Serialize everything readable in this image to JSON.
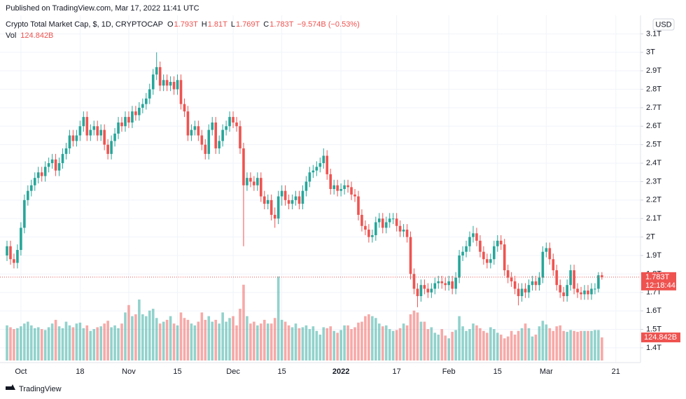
{
  "header": {
    "published": "Published on TradingView.com, Mar 17, 2022 11:41 UTC"
  },
  "footer": {
    "brand": "TradingView"
  },
  "chart_data": {
    "type": "candlestick",
    "legend": {
      "symbol": "Crypto Total Market Cap, $, 1D, CRYPTOCAP",
      "items": [
        {
          "label": "O",
          "value": "1.793T"
        },
        {
          "label": "H",
          "value": "1.81T"
        },
        {
          "label": "L",
          "value": "1.769T"
        },
        {
          "label": "C",
          "value": "1.783T"
        }
      ],
      "change": "−9.574B (−0.53%)",
      "volume_label": "Vol",
      "volume_value": "124.842B"
    },
    "currency": "USD",
    "countdown": "12:18:44",
    "price_tag": {
      "value": 1.783,
      "label": "1.783T"
    },
    "volume_tag": {
      "value": 124.842,
      "label": "124.842B"
    },
    "up_color": "#26a69a",
    "down_color": "#ef5350",
    "ylim": [
      1.32,
      3.2
    ],
    "yticks": [
      {
        "value": 3.1,
        "label": "3.1T"
      },
      {
        "value": 3.0,
        "label": "3T"
      },
      {
        "value": 2.9,
        "label": "2.9T"
      },
      {
        "value": 2.8,
        "label": "2.8T"
      },
      {
        "value": 2.7,
        "label": "2.7T"
      },
      {
        "value": 2.6,
        "label": "2.6T"
      },
      {
        "value": 2.5,
        "label": "2.5T"
      },
      {
        "value": 2.4,
        "label": "2.4T"
      },
      {
        "value": 2.3,
        "label": "2.3T"
      },
      {
        "value": 2.2,
        "label": "2.2T"
      },
      {
        "value": 2.1,
        "label": "2.1T"
      },
      {
        "value": 2.0,
        "label": "2T"
      },
      {
        "value": 1.9,
        "label": "1.9T"
      },
      {
        "value": 1.8,
        "label": "1.8T"
      },
      {
        "value": 1.7,
        "label": "1.7T"
      },
      {
        "value": 1.6,
        "label": "1.6T"
      },
      {
        "value": 1.5,
        "label": "1.5T"
      },
      {
        "value": 1.4,
        "label": "1.4T"
      }
    ],
    "grid": true,
    "categories": [
      null,
      null,
      null,
      null,
      "Oct",
      null,
      null,
      null,
      null,
      null,
      null,
      null,
      null,
      null,
      null,
      null,
      null,
      null,
      null,
      null,
      null,
      "18",
      null,
      null,
      null,
      null,
      null,
      null,
      null,
      null,
      null,
      null,
      null,
      null,
      null,
      "Nov",
      null,
      null,
      null,
      null,
      null,
      null,
      null,
      null,
      null,
      null,
      null,
      null,
      null,
      "15",
      null,
      null,
      null,
      null,
      null,
      null,
      null,
      null,
      null,
      null,
      null,
      null,
      null,
      null,
      null,
      "Dec",
      null,
      null,
      null,
      null,
      null,
      null,
      null,
      null,
      null,
      null,
      null,
      null,
      null,
      "15",
      null,
      null,
      null,
      null,
      null,
      null,
      null,
      null,
      null,
      null,
      null,
      null,
      null,
      null,
      null,
      null,
      "2022",
      null,
      null,
      null,
      null,
      null,
      null,
      null,
      null,
      null,
      null,
      null,
      null,
      null,
      null,
      null,
      "17",
      null,
      null,
      null,
      null,
      null,
      null,
      null,
      null,
      null,
      null,
      null,
      null,
      null,
      null,
      "Feb",
      null,
      null,
      null,
      null,
      null,
      null,
      null,
      null,
      null,
      null,
      null,
      null,
      null,
      "15",
      null,
      null,
      null,
      null,
      null,
      null,
      null,
      null,
      null,
      null,
      null,
      null,
      null,
      "Mar",
      null,
      null,
      null,
      null,
      null,
      null,
      null,
      null,
      null,
      null,
      null,
      null,
      null,
      null,
      null,
      null,
      null,
      null,
      null,
      "21"
    ],
    "candles": [
      [
        1.9,
        1.98,
        1.87,
        1.95
      ],
      [
        1.95,
        1.98,
        1.85,
        1.88
      ],
      [
        1.88,
        1.91,
        1.83,
        1.86
      ],
      [
        1.86,
        1.96,
        1.83,
        1.93
      ],
      [
        1.93,
        2.08,
        1.9,
        2.05
      ],
      [
        2.05,
        2.23,
        2.02,
        2.2
      ],
      [
        2.2,
        2.28,
        2.17,
        2.25
      ],
      [
        2.25,
        2.31,
        2.22,
        2.28
      ],
      [
        2.28,
        2.35,
        2.25,
        2.32
      ],
      [
        2.32,
        2.38,
        2.29,
        2.35
      ],
      [
        2.35,
        2.38,
        2.3,
        2.33
      ],
      [
        2.33,
        2.41,
        2.3,
        2.38
      ],
      [
        2.38,
        2.43,
        2.35,
        2.4
      ],
      [
        2.4,
        2.45,
        2.37,
        2.42
      ],
      [
        2.42,
        2.45,
        2.33,
        2.36
      ],
      [
        2.36,
        2.43,
        2.33,
        2.4
      ],
      [
        2.4,
        2.48,
        2.37,
        2.45
      ],
      [
        2.45,
        2.51,
        2.42,
        2.48
      ],
      [
        2.48,
        2.58,
        2.45,
        2.55
      ],
      [
        2.55,
        2.58,
        2.49,
        2.52
      ],
      [
        2.52,
        2.58,
        2.49,
        2.55
      ],
      [
        2.55,
        2.63,
        2.52,
        2.6
      ],
      [
        2.6,
        2.68,
        2.57,
        2.65
      ],
      [
        2.65,
        2.68,
        2.52,
        2.55
      ],
      [
        2.55,
        2.61,
        2.52,
        2.58
      ],
      [
        2.58,
        2.63,
        2.55,
        2.6
      ],
      [
        2.6,
        2.63,
        2.52,
        2.55
      ],
      [
        2.55,
        2.61,
        2.52,
        2.58
      ],
      [
        2.58,
        2.61,
        2.47,
        2.5
      ],
      [
        2.5,
        2.53,
        2.42,
        2.45
      ],
      [
        2.45,
        2.55,
        2.42,
        2.52
      ],
      [
        2.52,
        2.59,
        2.49,
        2.56
      ],
      [
        2.56,
        2.65,
        2.53,
        2.62
      ],
      [
        2.62,
        2.65,
        2.57,
        2.6
      ],
      [
        2.6,
        2.68,
        2.57,
        2.65
      ],
      [
        2.65,
        2.68,
        2.59,
        2.62
      ],
      [
        2.62,
        2.71,
        2.59,
        2.68
      ],
      [
        2.68,
        2.71,
        2.63,
        2.66
      ],
      [
        2.66,
        2.73,
        2.63,
        2.7
      ],
      [
        2.7,
        2.75,
        2.67,
        2.72
      ],
      [
        2.72,
        2.78,
        2.69,
        2.75
      ],
      [
        2.75,
        2.83,
        2.72,
        2.8
      ],
      [
        2.8,
        2.91,
        2.77,
        2.88
      ],
      [
        2.88,
        3.0,
        2.85,
        2.92
      ],
      [
        2.92,
        2.95,
        2.79,
        2.82
      ],
      [
        2.82,
        2.88,
        2.79,
        2.85
      ],
      [
        2.85,
        2.88,
        2.79,
        2.82
      ],
      [
        2.82,
        2.87,
        2.79,
        2.84
      ],
      [
        2.84,
        2.87,
        2.77,
        2.8
      ],
      [
        2.8,
        2.88,
        2.77,
        2.85
      ],
      [
        2.85,
        2.88,
        2.69,
        2.72
      ],
      [
        2.72,
        2.75,
        2.65,
        2.68
      ],
      [
        2.68,
        2.71,
        2.52,
        2.55
      ],
      [
        2.55,
        2.61,
        2.52,
        2.58
      ],
      [
        2.58,
        2.63,
        2.55,
        2.6
      ],
      [
        2.6,
        2.63,
        2.52,
        2.55
      ],
      [
        2.55,
        2.58,
        2.47,
        2.5
      ],
      [
        2.5,
        2.53,
        2.42,
        2.45
      ],
      [
        2.45,
        2.61,
        2.42,
        2.58
      ],
      [
        2.58,
        2.65,
        2.55,
        2.62
      ],
      [
        2.62,
        2.65,
        2.45,
        2.48
      ],
      [
        2.48,
        2.55,
        2.45,
        2.52
      ],
      [
        2.52,
        2.61,
        2.49,
        2.58
      ],
      [
        2.58,
        2.63,
        2.55,
        2.6
      ],
      [
        2.6,
        2.68,
        2.57,
        2.65
      ],
      [
        2.65,
        2.68,
        2.59,
        2.62
      ],
      [
        2.62,
        2.65,
        2.57,
        2.6
      ],
      [
        2.6,
        2.63,
        2.45,
        2.48
      ],
      [
        2.48,
        2.51,
        1.95,
        2.28
      ],
      [
        2.28,
        2.35,
        2.25,
        2.32
      ],
      [
        2.32,
        2.35,
        2.27,
        2.3
      ],
      [
        2.3,
        2.33,
        2.25,
        2.28
      ],
      [
        2.28,
        2.35,
        2.25,
        2.32
      ],
      [
        2.32,
        2.35,
        2.19,
        2.22
      ],
      [
        2.22,
        2.25,
        2.15,
        2.18
      ],
      [
        2.18,
        2.23,
        2.15,
        2.2
      ],
      [
        2.2,
        2.23,
        2.09,
        2.12
      ],
      [
        2.12,
        2.16,
        2.05,
        2.1
      ],
      [
        2.1,
        2.25,
        2.07,
        2.22
      ],
      [
        2.22,
        2.28,
        2.17,
        2.25
      ],
      [
        2.25,
        2.28,
        2.17,
        2.2
      ],
      [
        2.2,
        2.23,
        2.15,
        2.18
      ],
      [
        2.18,
        2.23,
        2.15,
        2.2
      ],
      [
        2.2,
        2.25,
        2.17,
        2.22
      ],
      [
        2.22,
        2.25,
        2.15,
        2.18
      ],
      [
        2.18,
        2.28,
        2.15,
        2.25
      ],
      [
        2.25,
        2.33,
        2.22,
        2.3
      ],
      [
        2.3,
        2.38,
        2.27,
        2.35
      ],
      [
        2.35,
        2.39,
        2.32,
        2.36
      ],
      [
        2.36,
        2.41,
        2.33,
        2.38
      ],
      [
        2.38,
        2.43,
        2.35,
        2.4
      ],
      [
        2.4,
        2.48,
        2.37,
        2.44
      ],
      [
        2.44,
        2.47,
        2.31,
        2.34
      ],
      [
        2.34,
        2.37,
        2.23,
        2.26
      ],
      [
        2.26,
        2.31,
        2.23,
        2.28
      ],
      [
        2.28,
        2.31,
        2.22,
        2.25
      ],
      [
        2.25,
        2.29,
        2.22,
        2.26
      ],
      [
        2.26,
        2.31,
        2.23,
        2.28
      ],
      [
        2.28,
        2.31,
        2.24,
        2.27
      ],
      [
        2.27,
        2.3,
        2.2,
        2.23
      ],
      [
        2.23,
        2.26,
        2.19,
        2.22
      ],
      [
        2.22,
        2.25,
        2.09,
        2.12
      ],
      [
        2.12,
        2.15,
        2.03,
        2.06
      ],
      [
        2.06,
        2.09,
        2.01,
        2.04
      ],
      [
        2.04,
        2.07,
        1.97,
        2.0
      ],
      [
        2.0,
        2.04,
        1.97,
        2.01
      ],
      [
        2.01,
        2.11,
        1.98,
        2.08
      ],
      [
        2.08,
        2.13,
        2.05,
        2.1
      ],
      [
        2.1,
        2.13,
        2.02,
        2.05
      ],
      [
        2.05,
        2.11,
        2.02,
        2.08
      ],
      [
        2.08,
        2.13,
        2.05,
        2.1
      ],
      [
        2.1,
        2.13,
        2.07,
        2.1
      ],
      [
        2.1,
        2.13,
        2.03,
        2.06
      ],
      [
        2.06,
        2.09,
        2.0,
        2.03
      ],
      [
        2.03,
        2.07,
        2.0,
        2.04
      ],
      [
        2.04,
        2.07,
        1.97,
        2.0
      ],
      [
        2.0,
        2.03,
        1.77,
        1.8
      ],
      [
        1.8,
        1.83,
        1.69,
        1.72
      ],
      [
        1.72,
        1.75,
        1.62,
        1.68
      ],
      [
        1.68,
        1.77,
        1.65,
        1.74
      ],
      [
        1.74,
        1.77,
        1.69,
        1.72
      ],
      [
        1.72,
        1.75,
        1.67,
        1.7
      ],
      [
        1.7,
        1.75,
        1.67,
        1.72
      ],
      [
        1.72,
        1.78,
        1.69,
        1.75
      ],
      [
        1.75,
        1.79,
        1.72,
        1.76
      ],
      [
        1.76,
        1.79,
        1.72,
        1.75
      ],
      [
        1.75,
        1.78,
        1.71,
        1.74
      ],
      [
        1.74,
        1.79,
        1.71,
        1.76
      ],
      [
        1.76,
        1.79,
        1.69,
        1.72
      ],
      [
        1.72,
        1.81,
        1.69,
        1.78
      ],
      [
        1.78,
        1.93,
        1.75,
        1.9
      ],
      [
        1.9,
        1.95,
        1.87,
        1.92
      ],
      [
        1.92,
        1.98,
        1.89,
        1.95
      ],
      [
        1.95,
        2.03,
        1.92,
        2.0
      ],
      [
        2.0,
        2.06,
        1.97,
        2.02
      ],
      [
        2.02,
        2.05,
        1.95,
        1.98
      ],
      [
        1.98,
        2.01,
        1.89,
        1.92
      ],
      [
        1.92,
        1.95,
        1.85,
        1.88
      ],
      [
        1.88,
        1.91,
        1.83,
        1.86
      ],
      [
        1.86,
        1.91,
        1.83,
        1.88
      ],
      [
        1.88,
        1.98,
        1.85,
        1.95
      ],
      [
        1.95,
        2.01,
        1.92,
        1.98
      ],
      [
        1.98,
        2.01,
        1.93,
        1.96
      ],
      [
        1.96,
        1.99,
        1.79,
        1.82
      ],
      [
        1.82,
        1.85,
        1.75,
        1.78
      ],
      [
        1.78,
        1.81,
        1.73,
        1.76
      ],
      [
        1.76,
        1.79,
        1.69,
        1.72
      ],
      [
        1.72,
        1.75,
        1.63,
        1.68
      ],
      [
        1.68,
        1.75,
        1.65,
        1.72
      ],
      [
        1.72,
        1.75,
        1.67,
        1.7
      ],
      [
        1.7,
        1.77,
        1.67,
        1.74
      ],
      [
        1.74,
        1.79,
        1.71,
        1.76
      ],
      [
        1.76,
        1.79,
        1.71,
        1.74
      ],
      [
        1.74,
        1.81,
        1.71,
        1.78
      ],
      [
        1.78,
        1.95,
        1.75,
        1.92
      ],
      [
        1.92,
        1.97,
        1.89,
        1.94
      ],
      [
        1.94,
        1.97,
        1.85,
        1.88
      ],
      [
        1.88,
        1.91,
        1.79,
        1.82
      ],
      [
        1.82,
        1.85,
        1.71,
        1.74
      ],
      [
        1.74,
        1.77,
        1.67,
        1.7
      ],
      [
        1.7,
        1.73,
        1.65,
        1.68
      ],
      [
        1.68,
        1.77,
        1.65,
        1.74
      ],
      [
        1.74,
        1.85,
        1.71,
        1.82
      ],
      [
        1.82,
        1.85,
        1.69,
        1.72
      ],
      [
        1.72,
        1.75,
        1.67,
        1.7
      ],
      [
        1.7,
        1.73,
        1.66,
        1.69
      ],
      [
        1.69,
        1.74,
        1.66,
        1.71
      ],
      [
        1.71,
        1.74,
        1.66,
        1.69
      ],
      [
        1.69,
        1.75,
        1.66,
        1.72
      ],
      [
        1.72,
        1.75,
        1.69,
        1.72
      ],
      [
        1.72,
        1.81,
        1.7,
        1.793
      ],
      [
        1.793,
        1.81,
        1.769,
        1.783
      ],
      null,
      null,
      null,
      null
    ],
    "volumes": [
      190,
      180,
      170,
      175,
      185,
      200,
      210,
      190,
      175,
      180,
      170,
      165,
      180,
      200,
      220,
      185,
      175,
      210,
      190,
      180,
      200,
      205,
      175,
      190,
      160,
      170,
      180,
      185,
      200,
      215,
      180,
      190,
      175,
      200,
      260,
      300,
      240,
      250,
      330,
      250,
      240,
      270,
      280,
      230,
      200,
      210,
      220,
      240,
      200,
      190,
      260,
      230,
      220,
      200,
      190,
      210,
      260,
      220,
      240,
      210,
      220,
      200,
      260,
      210,
      230,
      240,
      190,
      280,
      410,
      240,
      200,
      210,
      190,
      200,
      220,
      200,
      200,
      230,
      455,
      220,
      210,
      190,
      180,
      200,
      175,
      180,
      190,
      170,
      185,
      160,
      140,
      180,
      175,
      185,
      160,
      150,
      165,
      190,
      190,
      170,
      180,
      205,
      210,
      240,
      250,
      240,
      230,
      200,
      185,
      190,
      170,
      160,
      165,
      175,
      200,
      190,
      250,
      270,
      260,
      210,
      210,
      170,
      180,
      150,
      140,
      170,
      135,
      120,
      155,
      165,
      240,
      185,
      160,
      170,
      200,
      190,
      175,
      160,
      150,
      180,
      170,
      150,
      140,
      120,
      130,
      160,
      140,
      160,
      175,
      200,
      175,
      130,
      140,
      185,
      215,
      195,
      175,
      160,
      185,
      190,
      160,
      155,
      165,
      160,
      155,
      160,
      160,
      160,
      160,
      165,
      165,
      124.842,
      null,
      null,
      null,
      null
    ]
  }
}
